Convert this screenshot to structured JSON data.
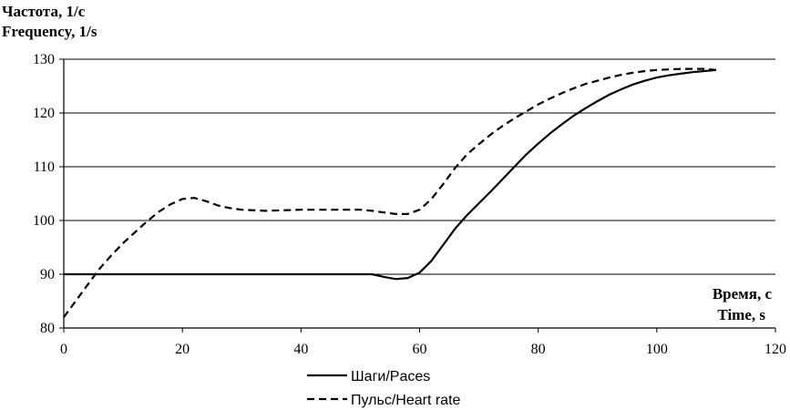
{
  "chart_data": {
    "type": "line",
    "ylabel_lines": [
      "Частота, 1/с",
      "Frequency, 1/s"
    ],
    "xlabel_lines": [
      "Время, с",
      "Time, s"
    ],
    "xlim": [
      0,
      120
    ],
    "ylim": [
      80,
      130
    ],
    "xticks": [
      0,
      20,
      40,
      60,
      80,
      100,
      120
    ],
    "yticks": [
      80,
      90,
      100,
      110,
      120,
      130
    ],
    "grid": "horizontal",
    "legend_position": "bottom",
    "series": [
      {
        "name": "Шаги/Paces",
        "style": "solid",
        "color": "#000000",
        "points": [
          [
            0,
            90
          ],
          [
            10,
            90
          ],
          [
            20,
            90
          ],
          [
            30,
            90
          ],
          [
            40,
            90
          ],
          [
            50,
            90
          ],
          [
            52,
            90
          ],
          [
            54,
            89.5
          ],
          [
            56,
            89.1
          ],
          [
            58,
            89.3
          ],
          [
            60,
            90.3
          ],
          [
            62,
            92.5
          ],
          [
            64,
            95.5
          ],
          [
            66,
            98.5
          ],
          [
            68,
            101
          ],
          [
            70,
            103.2
          ],
          [
            72,
            105.4
          ],
          [
            74,
            107.7
          ],
          [
            76,
            110
          ],
          [
            78,
            112.3
          ],
          [
            80,
            114.3
          ],
          [
            82,
            116.2
          ],
          [
            84,
            117.9
          ],
          [
            86,
            119.5
          ],
          [
            88,
            120.9
          ],
          [
            90,
            122.2
          ],
          [
            92,
            123.4
          ],
          [
            94,
            124.4
          ],
          [
            96,
            125.3
          ],
          [
            98,
            126
          ],
          [
            100,
            126.6
          ],
          [
            102,
            127
          ],
          [
            104,
            127.3
          ],
          [
            106,
            127.6
          ],
          [
            108,
            127.8
          ],
          [
            110,
            128
          ]
        ]
      },
      {
        "name": "Пульс/Heart rate",
        "style": "dashed",
        "color": "#000000",
        "points": [
          [
            0,
            82
          ],
          [
            2,
            85
          ],
          [
            4,
            88
          ],
          [
            6,
            91
          ],
          [
            8,
            93.5
          ],
          [
            10,
            95.8
          ],
          [
            12,
            97.8
          ],
          [
            14,
            99.8
          ],
          [
            16,
            101.6
          ],
          [
            18,
            103
          ],
          [
            20,
            104
          ],
          [
            22,
            104.2
          ],
          [
            24,
            103.6
          ],
          [
            26,
            102.8
          ],
          [
            28,
            102.3
          ],
          [
            30,
            102
          ],
          [
            34,
            101.8
          ],
          [
            40,
            102
          ],
          [
            46,
            102
          ],
          [
            50,
            102
          ],
          [
            52,
            101.8
          ],
          [
            54,
            101.5
          ],
          [
            56,
            101.2
          ],
          [
            58,
            101.2
          ],
          [
            60,
            102
          ],
          [
            62,
            104
          ],
          [
            64,
            106.8
          ],
          [
            66,
            109.8
          ],
          [
            68,
            112.3
          ],
          [
            70,
            114.2
          ],
          [
            72,
            116
          ],
          [
            74,
            117.6
          ],
          [
            76,
            119
          ],
          [
            78,
            120.3
          ],
          [
            80,
            121.6
          ],
          [
            82,
            122.7
          ],
          [
            84,
            123.7
          ],
          [
            86,
            124.6
          ],
          [
            88,
            125.4
          ],
          [
            90,
            126
          ],
          [
            92,
            126.6
          ],
          [
            94,
            127.1
          ],
          [
            96,
            127.5
          ],
          [
            98,
            127.8
          ],
          [
            100,
            128
          ],
          [
            104,
            128.2
          ],
          [
            108,
            128.2
          ],
          [
            110,
            128
          ]
        ]
      }
    ]
  }
}
